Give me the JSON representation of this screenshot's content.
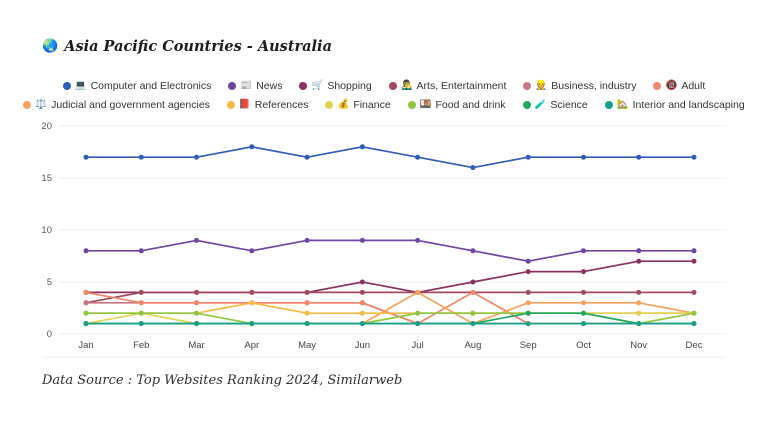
{
  "header": {
    "icon": "🌏",
    "title": "Asia Pacific Countries - Australia"
  },
  "footer": {
    "text": "Data Source : Top Websites Ranking 2024, Similarweb"
  },
  "chart_data": {
    "type": "line",
    "title": "Asia Pacific Countries - Australia",
    "x_categories": [
      "Jan",
      "Feb",
      "Mar",
      "Apr",
      "May",
      "Jun",
      "Jul",
      "Aug",
      "Sep",
      "Oct",
      "Nov",
      "Dec"
    ],
    "ylim": [
      0,
      20
    ],
    "yticks": [
      0,
      5,
      10,
      15,
      20
    ],
    "grid": true,
    "legend_position": "top",
    "series": [
      {
        "name": "Computer and Electronics",
        "icon": "💻",
        "color": "#2e5cb8",
        "values": [
          17,
          17,
          17,
          18,
          17,
          18,
          17,
          16,
          17,
          17,
          17,
          17
        ]
      },
      {
        "name": "News",
        "icon": "📰",
        "color": "#6f44a3",
        "values": [
          8,
          8,
          9,
          8,
          9,
          9,
          9,
          8,
          7,
          8,
          8,
          8
        ]
      },
      {
        "name": "Shopping",
        "icon": "🛒",
        "color": "#8c3063",
        "values": [
          4,
          4,
          4,
          4,
          4,
          5,
          4,
          5,
          6,
          6,
          7,
          7
        ]
      },
      {
        "name": "Arts, Entertainment",
        "icon": "👨‍🎤",
        "color": "#a14a5f",
        "values": [
          3,
          4,
          4,
          4,
          4,
          4,
          4,
          4,
          4,
          4,
          4,
          4
        ]
      },
      {
        "name": "Business, industry",
        "icon": "👷",
        "color": "#c97582",
        "values": [
          3,
          3,
          3,
          3,
          3,
          3,
          1,
          1,
          1,
          1,
          1,
          1
        ]
      },
      {
        "name": "Adult",
        "icon": "🔞",
        "color": "#ef8768",
        "values": [
          4,
          3,
          3,
          3,
          3,
          3,
          1,
          4,
          1,
          1,
          1,
          1
        ]
      },
      {
        "name": "Judicial and government agencies",
        "icon": "⚖️",
        "color": "#f7a159",
        "values": [
          1,
          1,
          1,
          1,
          1,
          1,
          4,
          1,
          3,
          3,
          3,
          2
        ]
      },
      {
        "name": "References",
        "icon": "📕",
        "color": "#f4bb44",
        "values": [
          2,
          2,
          2,
          3,
          2,
          2,
          2,
          2,
          2,
          2,
          2,
          2
        ]
      },
      {
        "name": "Finance",
        "icon": "💰",
        "color": "#e2d24f",
        "values": [
          1,
          2,
          1,
          1,
          1,
          1,
          2,
          2,
          2,
          2,
          2,
          2
        ]
      },
      {
        "name": "Food and drink",
        "icon": "🍱",
        "color": "#8dc63f",
        "values": [
          2,
          2,
          2,
          1,
          1,
          1,
          2,
          2,
          2,
          2,
          1,
          2
        ]
      },
      {
        "name": "Science",
        "icon": "🧪",
        "color": "#1fa85e",
        "values": [
          1,
          1,
          1,
          1,
          1,
          1,
          1,
          1,
          2,
          2,
          1,
          1
        ]
      },
      {
        "name": "Interior and landscaping",
        "icon": "🏡",
        "color": "#14a08a",
        "values": [
          1,
          1,
          1,
          1,
          1,
          1,
          1,
          1,
          1,
          1,
          1,
          1
        ]
      }
    ],
    "axis_text_color": "#555555",
    "gridline_color": "#ececec"
  }
}
